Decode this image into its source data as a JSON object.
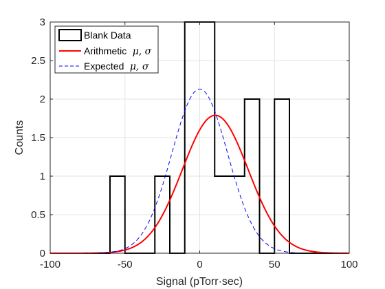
{
  "chart_data": {
    "type": "histogram",
    "xlabel": "Signal (pTorr·sec)",
    "ylabel": "Counts",
    "xlim": [
      -100,
      100
    ],
    "ylim": [
      0,
      3
    ],
    "xticks": [
      "-100",
      "-50",
      "0",
      "50",
      "100"
    ],
    "yticks": [
      "0",
      "0.5",
      "1",
      "1.5",
      "2",
      "2.5",
      "3"
    ],
    "grid": true,
    "legend_position": "top-left",
    "colors": {
      "histogram": "#000000",
      "arithmetic": "#ff0000",
      "expected": "#0000ff"
    },
    "histogram": {
      "name": "Blank Data",
      "bin_edges": [
        -60,
        -50,
        -40,
        -30,
        -20,
        -10,
        0,
        10,
        20,
        30,
        40,
        50,
        60
      ],
      "counts": [
        1,
        0,
        0,
        1,
        0,
        3,
        3,
        1,
        1,
        2,
        0,
        2
      ]
    },
    "curves": [
      {
        "name": "Arithmetic",
        "math": "μ, σ",
        "mean": 10.4,
        "sd": 22.0,
        "peak": 1.79,
        "style": "solid"
      },
      {
        "name": "Expected",
        "math": "μ, σ",
        "mean": 0,
        "sd": 18.7,
        "peak": 2.13,
        "style": "dashed"
      }
    ]
  }
}
